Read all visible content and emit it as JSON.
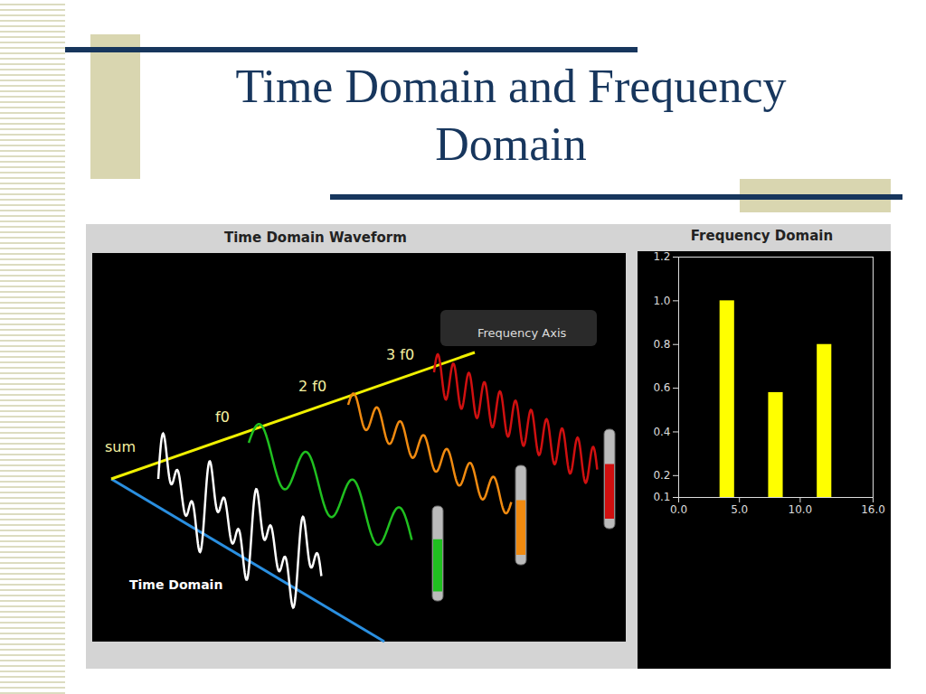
{
  "slide": {
    "title_lines": [
      "Time Domain and Frequency",
      "Domain"
    ]
  },
  "illustration": {
    "title": "Time Domain Waveform",
    "labels": {
      "sum": "sum",
      "f0": "f0",
      "f2": "2 f0",
      "f3": "3 f0",
      "frequency_axis": "Frequency Axis",
      "time_axis": "Time Domain"
    }
  },
  "chart_data": {
    "type": "bar",
    "title": "Frequency Domain",
    "x": [
      4,
      8,
      12
    ],
    "values": [
      1.0,
      0.58,
      0.8
    ],
    "color": "#ffff00",
    "xlim": [
      0,
      16
    ],
    "xticks": [
      {
        "value": 0,
        "label": "0.0"
      },
      {
        "value": 5,
        "label": "5.0"
      },
      {
        "value": 10,
        "label": "10.0"
      },
      {
        "value": 16,
        "label": "16.0"
      }
    ],
    "ylim": [
      0.1,
      1.2
    ],
    "yticks": [
      0.1,
      0.2,
      0.4,
      0.6,
      0.8,
      {
        "value": 1,
        "label": "1.0"
      },
      1.2
    ],
    "grid": false
  }
}
